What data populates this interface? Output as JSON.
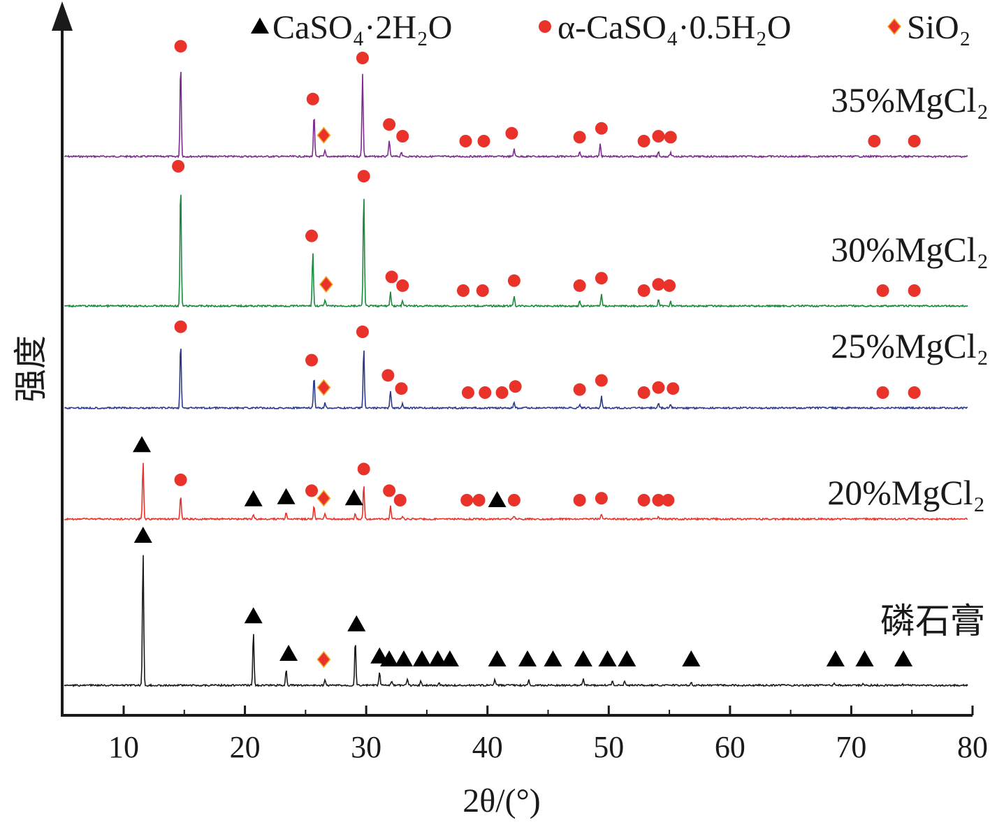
{
  "chart_data": {
    "type": "line",
    "title": "",
    "xlabel": "2θ/(°)",
    "ylabel": "强度",
    "xlim": [
      5,
      80
    ],
    "xticks": [
      10,
      20,
      30,
      40,
      50,
      60,
      70,
      80
    ],
    "legend_position": "top",
    "legend": [
      {
        "marker": "triangle",
        "label": "CaSO₄·2H₂O",
        "color": "#000000"
      },
      {
        "marker": "circle",
        "label": "α-CaSO₄·0.5H₂O",
        "color": "#e8322a"
      },
      {
        "marker": "diamond",
        "label": "SiO₂",
        "color": "#e8322a"
      }
    ],
    "series": [
      {
        "name": "35%MgCl₂",
        "color": "#7b2d8e",
        "peaks": [
          {
            "x": 14.7,
            "h": 0.97
          },
          {
            "x": 25.7,
            "h": 0.43
          },
          {
            "x": 26.6,
            "h": 0.06
          },
          {
            "x": 29.7,
            "h": 0.85
          },
          {
            "x": 31.9,
            "h": 0.17
          },
          {
            "x": 32.9,
            "h": 0.05
          },
          {
            "x": 42.2,
            "h": 0.08
          },
          {
            "x": 47.6,
            "h": 0.04
          },
          {
            "x": 49.3,
            "h": 0.13
          },
          {
            "x": 54.1,
            "h": 0.05
          },
          {
            "x": 55.1,
            "h": 0.04
          }
        ],
        "markers": [
          {
            "type": "circle",
            "x": 14.7
          },
          {
            "type": "circle",
            "x": 25.6
          },
          {
            "type": "diamond",
            "x": 26.5
          },
          {
            "type": "circle",
            "x": 29.7
          },
          {
            "type": "circle",
            "x": 31.9
          },
          {
            "type": "circle",
            "x": 33.0
          },
          {
            "type": "circle",
            "x": 38.2
          },
          {
            "type": "circle",
            "x": 39.7
          },
          {
            "type": "circle",
            "x": 42.0
          },
          {
            "type": "circle",
            "x": 47.6
          },
          {
            "type": "circle",
            "x": 49.4
          },
          {
            "type": "circle",
            "x": 52.9
          },
          {
            "type": "circle",
            "x": 54.1
          },
          {
            "type": "circle",
            "x": 55.1
          },
          {
            "type": "circle",
            "x": 71.9
          },
          {
            "type": "circle",
            "x": 75.2
          }
        ]
      },
      {
        "name": "30%MgCl₂",
        "color": "#1a8a3c",
        "peaks": [
          {
            "x": 14.7,
            "h": 1.0
          },
          {
            "x": 25.6,
            "h": 0.44
          },
          {
            "x": 26.6,
            "h": 0.05
          },
          {
            "x": 29.8,
            "h": 0.92
          },
          {
            "x": 32.0,
            "h": 0.11
          },
          {
            "x": 33.0,
            "h": 0.04
          },
          {
            "x": 42.2,
            "h": 0.08
          },
          {
            "x": 47.6,
            "h": 0.04
          },
          {
            "x": 49.4,
            "h": 0.1
          },
          {
            "x": 54.1,
            "h": 0.05
          },
          {
            "x": 55.1,
            "h": 0.04
          }
        ],
        "markers": [
          {
            "type": "circle",
            "x": 14.5
          },
          {
            "type": "circle",
            "x": 25.5
          },
          {
            "type": "diamond",
            "x": 26.7
          },
          {
            "type": "circle",
            "x": 29.8
          },
          {
            "type": "circle",
            "x": 32.1
          },
          {
            "type": "circle",
            "x": 33.0
          },
          {
            "type": "circle",
            "x": 38.0
          },
          {
            "type": "circle",
            "x": 39.6
          },
          {
            "type": "circle",
            "x": 42.2
          },
          {
            "type": "circle",
            "x": 47.6
          },
          {
            "type": "circle",
            "x": 49.4
          },
          {
            "type": "circle",
            "x": 52.9
          },
          {
            "type": "circle",
            "x": 54.1
          },
          {
            "type": "circle",
            "x": 55.0
          },
          {
            "type": "circle",
            "x": 72.6
          },
          {
            "type": "circle",
            "x": 75.2
          }
        ]
      },
      {
        "name": "25%MgCl₂",
        "color": "#2c3a8c",
        "peaks": [
          {
            "x": 14.7,
            "h": 0.65
          },
          {
            "x": 25.7,
            "h": 0.32
          },
          {
            "x": 26.6,
            "h": 0.05
          },
          {
            "x": 29.8,
            "h": 0.6
          },
          {
            "x": 32.0,
            "h": 0.17
          },
          {
            "x": 33.0,
            "h": 0.04
          },
          {
            "x": 42.2,
            "h": 0.06
          },
          {
            "x": 47.6,
            "h": 0.03
          },
          {
            "x": 49.4,
            "h": 0.12
          },
          {
            "x": 54.1,
            "h": 0.05
          },
          {
            "x": 55.1,
            "h": 0.04
          }
        ],
        "markers": [
          {
            "type": "circle",
            "x": 14.7
          },
          {
            "type": "circle",
            "x": 25.5
          },
          {
            "type": "diamond",
            "x": 26.5
          },
          {
            "type": "circle",
            "x": 29.7
          },
          {
            "type": "circle",
            "x": 31.8
          },
          {
            "type": "circle",
            "x": 32.9
          },
          {
            "type": "circle",
            "x": 38.4
          },
          {
            "type": "circle",
            "x": 39.8
          },
          {
            "type": "circle",
            "x": 41.2
          },
          {
            "type": "circle",
            "x": 42.3
          },
          {
            "type": "circle",
            "x": 47.6
          },
          {
            "type": "circle",
            "x": 49.4
          },
          {
            "type": "circle",
            "x": 52.9
          },
          {
            "type": "circle",
            "x": 54.1
          },
          {
            "type": "circle",
            "x": 55.3
          },
          {
            "type": "circle",
            "x": 72.6
          },
          {
            "type": "circle",
            "x": 75.2
          }
        ]
      },
      {
        "name": "20%MgCl₂",
        "color": "#e8322a",
        "peaks": [
          {
            "x": 11.6,
            "h": 0.54
          },
          {
            "x": 14.7,
            "h": 0.22
          },
          {
            "x": 20.7,
            "h": 0.04
          },
          {
            "x": 23.4,
            "h": 0.06
          },
          {
            "x": 25.7,
            "h": 0.12
          },
          {
            "x": 26.6,
            "h": 0.05
          },
          {
            "x": 29.1,
            "h": 0.05
          },
          {
            "x": 29.8,
            "h": 0.32
          },
          {
            "x": 32.0,
            "h": 0.12
          },
          {
            "x": 33.0,
            "h": 0.03
          },
          {
            "x": 42.2,
            "h": 0.03
          },
          {
            "x": 49.4,
            "h": 0.05
          },
          {
            "x": 54.1,
            "h": 0.02
          }
        ],
        "markers": [
          {
            "type": "triangle",
            "x": 11.5
          },
          {
            "type": "circle",
            "x": 14.7
          },
          {
            "type": "triangle",
            "x": 20.7
          },
          {
            "type": "triangle",
            "x": 23.4
          },
          {
            "type": "circle",
            "x": 25.5
          },
          {
            "type": "diamond",
            "x": 26.5
          },
          {
            "type": "triangle",
            "x": 29.0
          },
          {
            "type": "circle",
            "x": 29.8
          },
          {
            "type": "circle",
            "x": 31.9
          },
          {
            "type": "circle",
            "x": 32.8
          },
          {
            "type": "circle",
            "x": 38.3
          },
          {
            "type": "circle",
            "x": 39.3
          },
          {
            "type": "triangle",
            "x": 40.8
          },
          {
            "type": "circle",
            "x": 42.2
          },
          {
            "type": "circle",
            "x": 47.6
          },
          {
            "type": "circle",
            "x": 49.4
          },
          {
            "type": "circle",
            "x": 52.9
          },
          {
            "type": "circle",
            "x": 54.1
          },
          {
            "type": "circle",
            "x": 54.9
          }
        ]
      },
      {
        "name": "磷石膏",
        "color": "#1a1a1a",
        "peaks": [
          {
            "x": 11.6,
            "h": 1.0
          },
          {
            "x": 20.7,
            "h": 0.4
          },
          {
            "x": 23.4,
            "h": 0.12
          },
          {
            "x": 26.6,
            "h": 0.04
          },
          {
            "x": 29.1,
            "h": 0.34
          },
          {
            "x": 31.1,
            "h": 0.1
          },
          {
            "x": 32.1,
            "h": 0.03
          },
          {
            "x": 33.4,
            "h": 0.05
          },
          {
            "x": 34.5,
            "h": 0.03
          },
          {
            "x": 36.0,
            "h": 0.02
          },
          {
            "x": 40.6,
            "h": 0.04
          },
          {
            "x": 43.4,
            "h": 0.04
          },
          {
            "x": 47.9,
            "h": 0.05
          },
          {
            "x": 50.3,
            "h": 0.04
          },
          {
            "x": 51.3,
            "h": 0.03
          },
          {
            "x": 56.8,
            "h": 0.02
          },
          {
            "x": 68.6,
            "h": 0.02
          },
          {
            "x": 71.0,
            "h": 0.01
          },
          {
            "x": 74.2,
            "h": 0.01
          }
        ],
        "markers": [
          {
            "type": "triangle",
            "x": 11.6
          },
          {
            "type": "triangle",
            "x": 20.7
          },
          {
            "type": "triangle",
            "x": 23.6
          },
          {
            "type": "triangle",
            "x": 29.2
          },
          {
            "type": "triangle",
            "x": 31.1
          },
          {
            "type": "triangle",
            "x": 31.9
          },
          {
            "type": "triangle",
            "x": 33.1
          },
          {
            "type": "triangle",
            "x": 34.6
          },
          {
            "type": "triangle",
            "x": 35.9
          },
          {
            "type": "triangle",
            "x": 36.9
          },
          {
            "type": "triangle",
            "x": 40.8
          },
          {
            "type": "triangle",
            "x": 43.3
          },
          {
            "type": "triangle",
            "x": 45.4
          },
          {
            "type": "triangle",
            "x": 47.9
          },
          {
            "type": "triangle",
            "x": 49.9
          },
          {
            "type": "triangle",
            "x": 51.5
          },
          {
            "type": "triangle",
            "x": 56.8
          },
          {
            "type": "triangle",
            "x": 68.7
          },
          {
            "type": "triangle",
            "x": 71.1
          },
          {
            "type": "triangle",
            "x": 74.3
          },
          {
            "type": "diamond",
            "x": 26.5
          }
        ]
      }
    ]
  }
}
